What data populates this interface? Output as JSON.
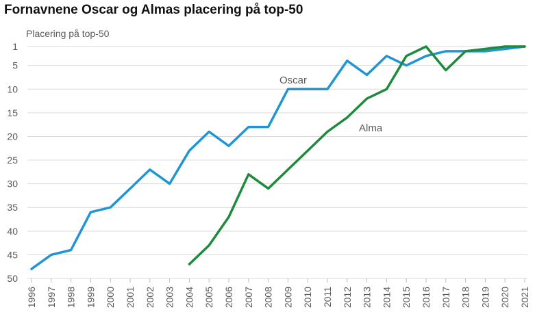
{
  "chart_data": {
    "type": "line",
    "title": "Fornavnene Oscar og Almas placering på top-50",
    "ylabel": "Placering på top-50",
    "xlabel": "",
    "x": [
      "1996",
      "1997",
      "1998",
      "1999",
      "2000",
      "2001",
      "2002",
      "2003",
      "2004",
      "2005",
      "2006",
      "2007",
      "2008",
      "2009",
      "2010",
      "2011",
      "2012",
      "2013",
      "2014",
      "2015",
      "2016",
      "2017",
      "2018",
      "2019",
      "2020",
      "2021"
    ],
    "yticks": [
      "1",
      "5",
      "10",
      "15",
      "20",
      "25",
      "30",
      "35",
      "40",
      "45",
      "50"
    ],
    "ylim": [
      1,
      50
    ],
    "y_inverted": true,
    "grid": "horizontal",
    "series": [
      {
        "name": "Oscar",
        "color": "#1f96d3",
        "values": [
          48,
          45,
          44,
          36,
          35,
          31,
          27,
          30,
          23,
          19,
          22,
          18,
          18,
          10,
          10,
          10,
          4,
          7,
          3,
          5,
          3,
          2,
          2,
          2,
          1.5,
          1
        ]
      },
      {
        "name": "Alma",
        "color": "#1e8a3c",
        "values": [
          null,
          null,
          null,
          null,
          null,
          null,
          null,
          null,
          47,
          43,
          37,
          28,
          31,
          27,
          23,
          19,
          16,
          12,
          10,
          3,
          1,
          6,
          2,
          1.5,
          1,
          1
        ]
      }
    ]
  }
}
